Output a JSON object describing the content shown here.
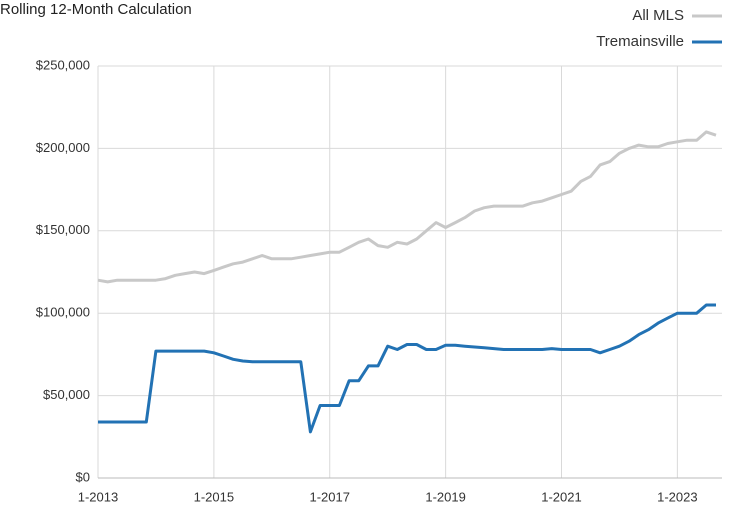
{
  "chart_data": {
    "type": "line",
    "title": "Rolling 12-Month Calculation",
    "x": [
      "1-2013",
      "3-2013",
      "5-2013",
      "7-2013",
      "9-2013",
      "11-2013",
      "1-2014",
      "3-2014",
      "5-2014",
      "7-2014",
      "9-2014",
      "11-2014",
      "1-2015",
      "3-2015",
      "5-2015",
      "7-2015",
      "9-2015",
      "11-2015",
      "1-2016",
      "3-2016",
      "5-2016",
      "7-2016",
      "9-2016",
      "11-2016",
      "1-2017",
      "3-2017",
      "5-2017",
      "7-2017",
      "9-2017",
      "11-2017",
      "1-2018",
      "3-2018",
      "5-2018",
      "7-2018",
      "9-2018",
      "11-2018",
      "1-2019",
      "3-2019",
      "5-2019",
      "7-2019",
      "9-2019",
      "11-2019",
      "1-2020",
      "3-2020",
      "5-2020",
      "7-2020",
      "9-2020",
      "11-2020",
      "1-2021",
      "3-2021",
      "5-2021",
      "7-2021",
      "9-2021",
      "11-2021",
      "1-2022",
      "3-2022",
      "5-2022",
      "7-2022",
      "9-2022",
      "11-2022",
      "1-2023",
      "3-2023",
      "5-2023",
      "7-2023",
      "9-2023"
    ],
    "xticks": [
      "1-2013",
      "1-2015",
      "1-2017",
      "1-2019",
      "1-2021",
      "1-2023"
    ],
    "series": [
      {
        "name": "All MLS",
        "color": "#c8c8c8",
        "values": [
          120000,
          119000,
          120000,
          120000,
          120000,
          120000,
          120000,
          121000,
          123000,
          124000,
          125000,
          124000,
          126000,
          128000,
          130000,
          131000,
          133000,
          135000,
          133000,
          133000,
          133000,
          134000,
          135000,
          136000,
          137000,
          137000,
          140000,
          143000,
          145000,
          141000,
          140000,
          143000,
          142000,
          145000,
          150000,
          155000,
          152000,
          155000,
          158000,
          162000,
          164000,
          165000,
          165000,
          165000,
          165000,
          167000,
          168000,
          170000,
          172000,
          174000,
          180000,
          183000,
          190000,
          192000,
          197000,
          200000,
          202000,
          201000,
          201000,
          203000,
          204000,
          205000,
          205000,
          210000,
          208000
        ]
      },
      {
        "name": "Tremainsville",
        "color": "#2272b4",
        "values": [
          34000,
          34000,
          34000,
          34000,
          34000,
          34000,
          77000,
          77000,
          77000,
          77000,
          77000,
          77000,
          76000,
          74000,
          72000,
          71000,
          70500,
          70500,
          70500,
          70500,
          70500,
          70500,
          28000,
          44000,
          44000,
          44000,
          59000,
          59000,
          68000,
          68000,
          80000,
          78000,
          81000,
          81000,
          78000,
          78000,
          80500,
          80500,
          80000,
          79500,
          79000,
          78500,
          78000,
          78000,
          78000,
          78000,
          78000,
          78500,
          78000,
          78000,
          78000,
          78000,
          76000,
          78000,
          80000,
          83000,
          87000,
          90000,
          94000,
          97000,
          100000,
          100000,
          100000,
          105000,
          105000
        ]
      }
    ],
    "ylim": [
      0,
      250000
    ],
    "yticks": [
      {
        "value": 0,
        "label": "$0"
      },
      {
        "value": 50000,
        "label": "$50,000"
      },
      {
        "value": 100000,
        "label": "$100,000"
      },
      {
        "value": 150000,
        "label": "$150,000"
      },
      {
        "value": 200000,
        "label": "$200,000"
      },
      {
        "value": 250000,
        "label": "$250,000"
      }
    ],
    "grid": true,
    "legend": "top-right"
  }
}
